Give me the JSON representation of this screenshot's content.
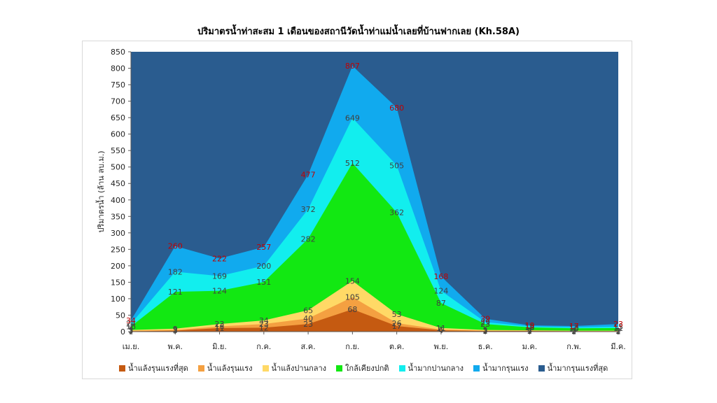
{
  "chart_data": {
    "type": "area",
    "title": "ปริมาตรน้ำท่าสะสม 1 เดือนของสถานีวัดน้ำท่าแม่น้ำเลยที่บ้านฟากเลย (Kh.58A)",
    "ylabel": "ปริมาตรน้ำ (ล้าน ลบ.ม.)",
    "xlabel": "",
    "ylim": [
      0,
      850
    ],
    "yticks": [
      0,
      50,
      100,
      150,
      200,
      250,
      300,
      350,
      400,
      450,
      500,
      550,
      600,
      650,
      700,
      750,
      800,
      850
    ],
    "categories": [
      "เม.ย.",
      "พ.ค.",
      "มิ.ย.",
      "ก.ค.",
      "ส.ค.",
      "ก.ย.",
      "ต.ค.",
      "พ.ย.",
      "ธ.ค.",
      "ม.ค.",
      "ก.พ.",
      "มี.ค."
    ],
    "legend_position": "bottom",
    "series": [
      {
        "name": "น้ำแล้งรุนแรงที่สุด",
        "color": "#c55a11",
        "label_color": "#404040",
        "values": [
          1,
          3,
          11,
          12,
          23,
          68,
          17,
          4,
          2,
          2,
          1,
          1
        ]
      },
      {
        "name": "น้ำแล้งรุนแรง",
        "color": "#f4a041",
        "label_color": "#404040",
        "values": [
          3,
          5,
          16,
          23,
          40,
          105,
          26,
          6,
          3,
          3,
          2,
          2
        ]
      },
      {
        "name": "น้ำแล้งปานกลาง",
        "color": "#ffd966",
        "label_color": "#404040",
        "values": [
          5,
          9,
          23,
          34,
          65,
          154,
          53,
          11,
          5,
          4,
          3,
          3
        ]
      },
      {
        "name": "ใกล้เคียงปกติ",
        "color": "#12e812",
        "label_color": "#404040",
        "values": [
          16,
          121,
          124,
          151,
          282,
          512,
          362,
          87,
          23,
          13,
          10,
          11
        ]
      },
      {
        "name": "น้ำมากปานกลาง",
        "color": "#12eeee",
        "label_color": "#404040",
        "values": [
          24,
          182,
          169,
          200,
          372,
          649,
          505,
          124,
          29,
          16,
          13,
          15
        ]
      },
      {
        "name": "น้ำมากรุนแรง",
        "color": "#11aaee",
        "label_color": "#c00000",
        "values": [
          34,
          260,
          222,
          257,
          477,
          807,
          680,
          168,
          39,
          19,
          17,
          23
        ]
      },
      {
        "name": "น้ำมากรุนแรงที่สุด",
        "color": "#2a5c8f",
        "label_color": "#c00000",
        "values": [
          850,
          850,
          850,
          850,
          850,
          850,
          850,
          850,
          850,
          850,
          850,
          850
        ]
      }
    ],
    "labeled_series": [
      0,
      1,
      2,
      3,
      4,
      5
    ]
  }
}
